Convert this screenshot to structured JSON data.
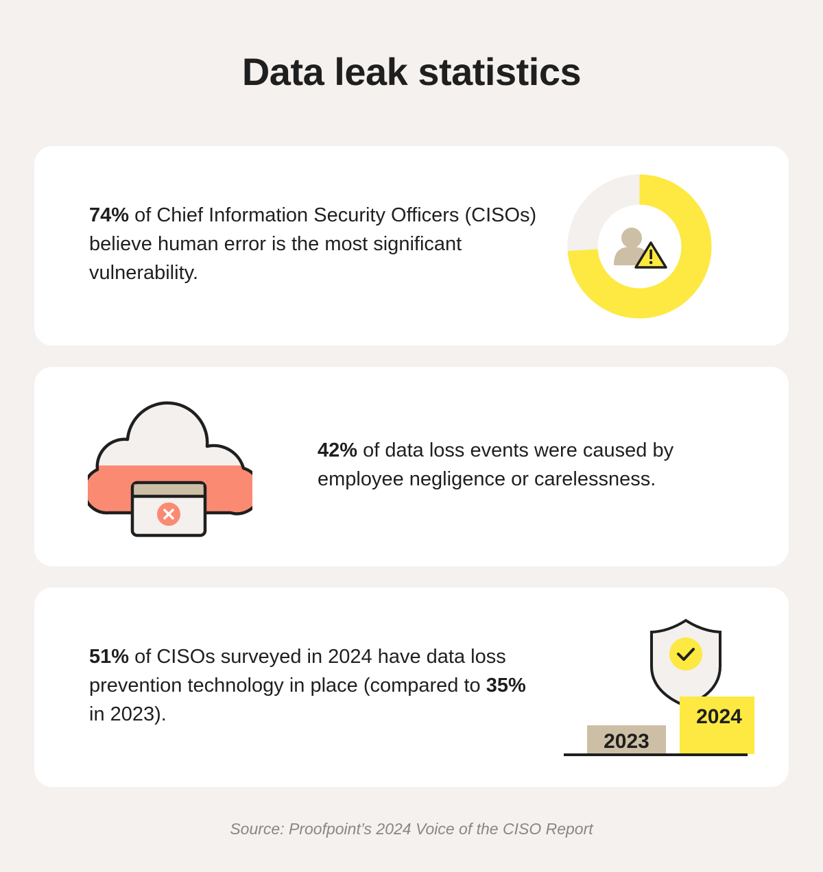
{
  "title": "Data leak statistics",
  "stats": [
    {
      "highlight": "74%",
      "text": " of Chief Information Security Officers (CISOs) believe human error is the most significant vulnerability.",
      "chart_data": {
        "type": "pie",
        "values": [
          74,
          26
        ]
      }
    },
    {
      "highlight": "42%",
      "text": " of data loss events were caused by employee negligence or carelessness."
    },
    {
      "highlight": "51%",
      "text_a": " of CISOs surveyed in 2024 have data loss prevention technology in place (compared to ",
      "highlight2": "35%",
      "text_b": " in 2023).",
      "bars": [
        "2023",
        "2024"
      ]
    }
  ],
  "colors": {
    "background": "#f4f1ee",
    "yellow": "#fde941",
    "tan": "#cdbfa5",
    "salmon": "#fb8a73",
    "light_gray": "#f3f0ed",
    "dark": "#1f1f1f"
  },
  "icons": [
    "person-warning-icon",
    "cloud-error-icon",
    "shield-check-icon"
  ],
  "source": "Source: Proofpoint’s 2024 Voice of the CISO Report"
}
